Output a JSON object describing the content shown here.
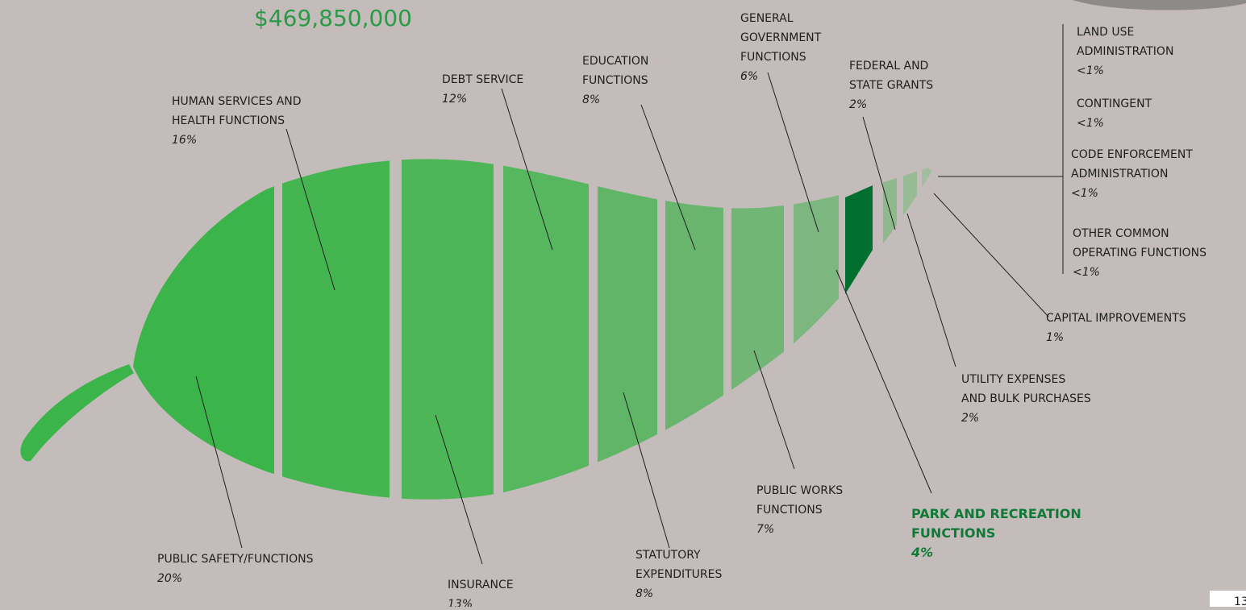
{
  "title": "$469,850,000",
  "segments": [
    {
      "label": [
        "PUBLIC SAFETY/FUNCTIONS"
      ],
      "share": "20%"
    },
    {
      "label": [
        "HUMAN SERVICES AND",
        "HEALTH FUNCTIONS"
      ],
      "share": "16%"
    },
    {
      "label": [
        "INSURANCE"
      ],
      "share": "13%"
    },
    {
      "label": [
        "DEBT SERVICE"
      ],
      "share": "12%"
    },
    {
      "label": [
        "EDUCATION",
        "FUNCTIONS"
      ],
      "share": "8%"
    },
    {
      "label": [
        "STATUTORY",
        "EXPENDITURES"
      ],
      "share": "8%"
    },
    {
      "label": [
        "PUBLIC WORKS",
        "FUNCTIONS"
      ],
      "share": "7%"
    },
    {
      "label": [
        "GENERAL",
        "GOVERNMENT",
        "FUNCTIONS"
      ],
      "share": "6%"
    },
    {
      "label": [
        "PARK AND RECREATION",
        "FUNCTIONS"
      ],
      "share": "4%"
    },
    {
      "label": [
        "FEDERAL AND",
        "STATE GRANTS"
      ],
      "share": "2%"
    },
    {
      "label": [
        "UTILITY EXPENSES",
        "AND BULK PURCHASES"
      ],
      "share": "2%"
    },
    {
      "label": [
        "CAPITAL IMPROVEMENTS"
      ],
      "share": "1%"
    },
    {
      "label": [
        "LAND USE",
        "ADMINISTRATION"
      ],
      "share": "<1%"
    },
    {
      "label": [
        "CONTINGENT"
      ],
      "share": "<1%"
    },
    {
      "label": [
        "CODE ENFORCEMENT",
        "ADMINISTRATION"
      ],
      "share": "<1%"
    },
    {
      "label": [
        "OTHER COMMON",
        "OPERATING FUNCTIONS"
      ],
      "share": "<1%"
    }
  ],
  "page_number": "13"
}
